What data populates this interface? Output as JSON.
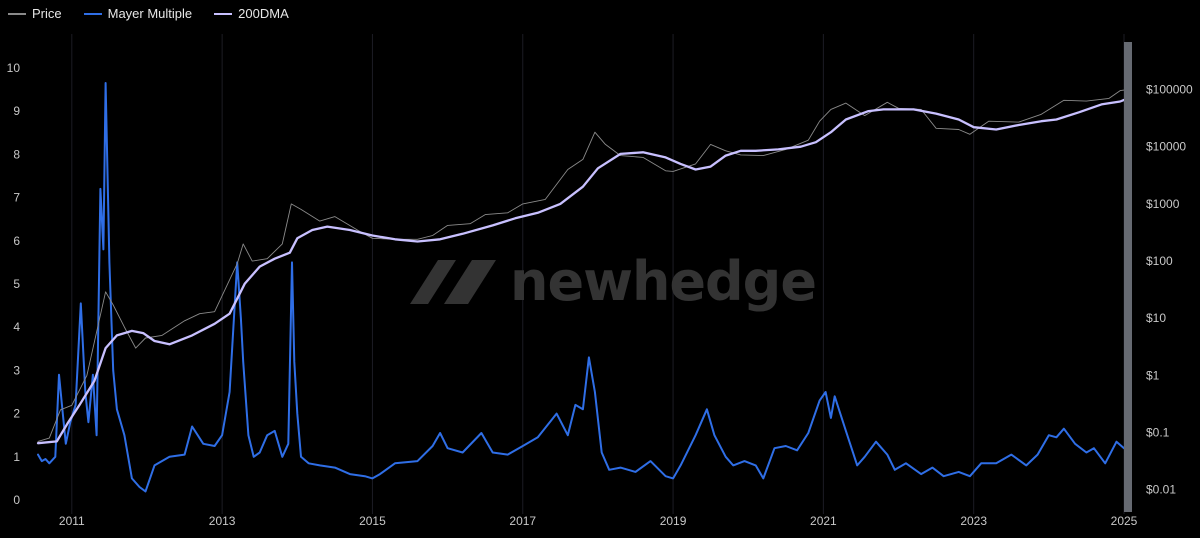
{
  "legend": [
    {
      "label": "Price",
      "color": "#8a8a8a"
    },
    {
      "label": "Mayer Multiple",
      "color": "#2f6ee6"
    },
    {
      "label": "200DMA",
      "color": "#c8c0ff"
    }
  ],
  "watermark": {
    "text": "newhedge"
  },
  "colors": {
    "background": "#000000",
    "grid": "#1c1c24",
    "slider": "#666a72"
  },
  "chart_data": {
    "type": "line",
    "x_ticks": [
      "2011",
      "2013",
      "2015",
      "2017",
      "2019",
      "2021",
      "2023",
      "2025"
    ],
    "x_range": [
      2010.55,
      2025.0
    ],
    "left_axis": {
      "ticks": [
        "0",
        "1",
        "2",
        "3",
        "4",
        "5",
        "6",
        "7",
        "8",
        "9",
        "10"
      ],
      "ylim": [
        0,
        10.6
      ]
    },
    "right_axis": {
      "scale": "log",
      "ticks": [
        "$0.01",
        "$0.1",
        "$1",
        "$10",
        "$100",
        "$1000",
        "$10000",
        "$100000"
      ],
      "ylim": [
        0.0066,
        680000
      ]
    },
    "series": [
      {
        "name": "Mayer Multiple",
        "axis": "left",
        "x": [
          2010.55,
          2010.6,
          2010.65,
          2010.7,
          2010.78,
          2010.83,
          2010.88,
          2010.92,
          2010.98,
          2011.05,
          2011.12,
          2011.18,
          2011.22,
          2011.28,
          2011.33,
          2011.38,
          2011.42,
          2011.45,
          2011.5,
          2011.55,
          2011.6,
          2011.7,
          2011.8,
          2011.9,
          2011.98,
          2012.1,
          2012.3,
          2012.5,
          2012.6,
          2012.75,
          2012.9,
          2013.0,
          2013.1,
          2013.2,
          2013.25,
          2013.28,
          2013.35,
          2013.42,
          2013.5,
          2013.6,
          2013.7,
          2013.8,
          2013.88,
          2013.93,
          2013.96,
          2014.0,
          2014.05,
          2014.15,
          2014.3,
          2014.5,
          2014.7,
          2014.9,
          2015.0,
          2015.1,
          2015.3,
          2015.6,
          2015.8,
          2015.9,
          2016.0,
          2016.2,
          2016.45,
          2016.6,
          2016.8,
          2017.0,
          2017.2,
          2017.45,
          2017.6,
          2017.7,
          2017.8,
          2017.88,
          2017.96,
          2018.05,
          2018.15,
          2018.3,
          2018.5,
          2018.7,
          2018.9,
          2019.0,
          2019.1,
          2019.3,
          2019.45,
          2019.55,
          2019.7,
          2019.8,
          2019.95,
          2020.1,
          2020.2,
          2020.35,
          2020.5,
          2020.65,
          2020.8,
          2020.95,
          2021.03,
          2021.1,
          2021.15,
          2021.3,
          2021.45,
          2021.55,
          2021.7,
          2021.85,
          2021.95,
          2022.1,
          2022.3,
          2022.45,
          2022.6,
          2022.8,
          2022.95,
          2023.1,
          2023.3,
          2023.5,
          2023.7,
          2023.85,
          2024.0,
          2024.1,
          2024.2,
          2024.35,
          2024.5,
          2024.6,
          2024.75,
          2024.9,
          2025.0
        ],
        "y": [
          1.05,
          0.9,
          0.95,
          0.85,
          1.0,
          2.9,
          2.0,
          1.3,
          1.8,
          2.2,
          4.55,
          2.5,
          1.8,
          2.9,
          1.5,
          7.2,
          5.8,
          9.65,
          5.5,
          3.0,
          2.1,
          1.5,
          0.5,
          0.3,
          0.2,
          0.8,
          1.0,
          1.05,
          1.7,
          1.3,
          1.25,
          1.5,
          2.5,
          5.5,
          4.2,
          3.2,
          1.5,
          1.0,
          1.1,
          1.5,
          1.6,
          1.0,
          1.3,
          5.5,
          3.2,
          2.0,
          1.0,
          0.85,
          0.8,
          0.75,
          0.6,
          0.55,
          0.5,
          0.6,
          0.85,
          0.9,
          1.25,
          1.55,
          1.2,
          1.1,
          1.55,
          1.1,
          1.05,
          1.25,
          1.45,
          2.0,
          1.5,
          2.2,
          2.1,
          3.3,
          2.5,
          1.1,
          0.7,
          0.75,
          0.65,
          0.9,
          0.55,
          0.5,
          0.8,
          1.5,
          2.1,
          1.5,
          1.0,
          0.8,
          0.9,
          0.8,
          0.5,
          1.2,
          1.25,
          1.15,
          1.55,
          2.3,
          2.5,
          1.9,
          2.4,
          1.6,
          0.8,
          1.0,
          1.35,
          1.05,
          0.7,
          0.85,
          0.6,
          0.75,
          0.55,
          0.65,
          0.55,
          0.85,
          0.85,
          1.05,
          0.8,
          1.05,
          1.5,
          1.45,
          1.65,
          1.3,
          1.1,
          1.2,
          0.85,
          1.35,
          1.2
        ]
      },
      {
        "name": "Price",
        "axis": "right",
        "x": [
          2010.55,
          2010.7,
          2010.85,
          2011.0,
          2011.2,
          2011.45,
          2011.55,
          2011.7,
          2011.85,
          2011.98,
          2012.2,
          2012.5,
          2012.7,
          2012.9,
          2013.2,
          2013.28,
          2013.4,
          2013.6,
          2013.8,
          2013.92,
          2014.05,
          2014.3,
          2014.5,
          2014.8,
          2015.0,
          2015.3,
          2015.6,
          2015.8,
          2016.0,
          2016.3,
          2016.5,
          2016.8,
          2017.0,
          2017.3,
          2017.6,
          2017.8,
          2017.96,
          2018.1,
          2018.3,
          2018.6,
          2018.9,
          2019.0,
          2019.3,
          2019.5,
          2019.7,
          2019.9,
          2020.2,
          2020.5,
          2020.8,
          2020.95,
          2021.1,
          2021.3,
          2021.55,
          2021.85,
          2022.0,
          2022.3,
          2022.5,
          2022.8,
          2022.95,
          2023.2,
          2023.6,
          2023.9,
          2024.2,
          2024.5,
          2024.8,
          2024.95,
          2025.0
        ],
        "y": [
          0.07,
          0.08,
          0.25,
          0.3,
          1.0,
          29,
          17,
          7,
          3,
          4.5,
          5,
          9,
          12,
          13,
          90,
          200,
          100,
          110,
          200,
          1000,
          800,
          500,
          600,
          350,
          250,
          240,
          240,
          280,
          420,
          450,
          650,
          700,
          1000,
          1200,
          4000,
          6000,
          18000,
          11000,
          7000,
          6500,
          3800,
          3700,
          5000,
          11000,
          8500,
          7200,
          7000,
          9000,
          13000,
          28000,
          45000,
          58000,
          35000,
          60000,
          47000,
          45000,
          21000,
          20000,
          16500,
          28000,
          27000,
          37000,
          65000,
          63000,
          70000,
          96000,
          98000
        ]
      },
      {
        "name": "200DMA",
        "axis": "right",
        "x": [
          2010.55,
          2010.8,
          2010.95,
          2011.1,
          2011.3,
          2011.45,
          2011.6,
          2011.8,
          2011.95,
          2012.1,
          2012.3,
          2012.6,
          2012.9,
          2013.1,
          2013.3,
          2013.5,
          2013.7,
          2013.9,
          2014.0,
          2014.2,
          2014.4,
          2014.7,
          2015.0,
          2015.3,
          2015.6,
          2015.9,
          2016.2,
          2016.6,
          2016.9,
          2017.2,
          2017.5,
          2017.8,
          2018.0,
          2018.3,
          2018.6,
          2018.9,
          2019.1,
          2019.3,
          2019.5,
          2019.7,
          2019.9,
          2020.1,
          2020.4,
          2020.7,
          2020.9,
          2021.1,
          2021.3,
          2021.6,
          2021.8,
          2022.0,
          2022.2,
          2022.5,
          2022.8,
          2023.0,
          2023.3,
          2023.6,
          2023.9,
          2024.1,
          2024.4,
          2024.7,
          2024.95,
          2025.0
        ],
        "y": [
          0.065,
          0.07,
          0.15,
          0.3,
          0.8,
          3,
          5,
          6,
          5.5,
          4,
          3.5,
          5,
          8,
          12,
          40,
          80,
          110,
          140,
          250,
          350,
          400,
          350,
          280,
          240,
          220,
          240,
          300,
          420,
          560,
          700,
          1000,
          2000,
          4200,
          7500,
          8000,
          6500,
          5000,
          4000,
          4500,
          7000,
          8500,
          8500,
          9000,
          10000,
          12000,
          18000,
          30000,
          42000,
          45000,
          45000,
          45000,
          38000,
          30000,
          22000,
          20000,
          24000,
          28000,
          30000,
          40000,
          55000,
          62000,
          66000
        ]
      }
    ]
  }
}
